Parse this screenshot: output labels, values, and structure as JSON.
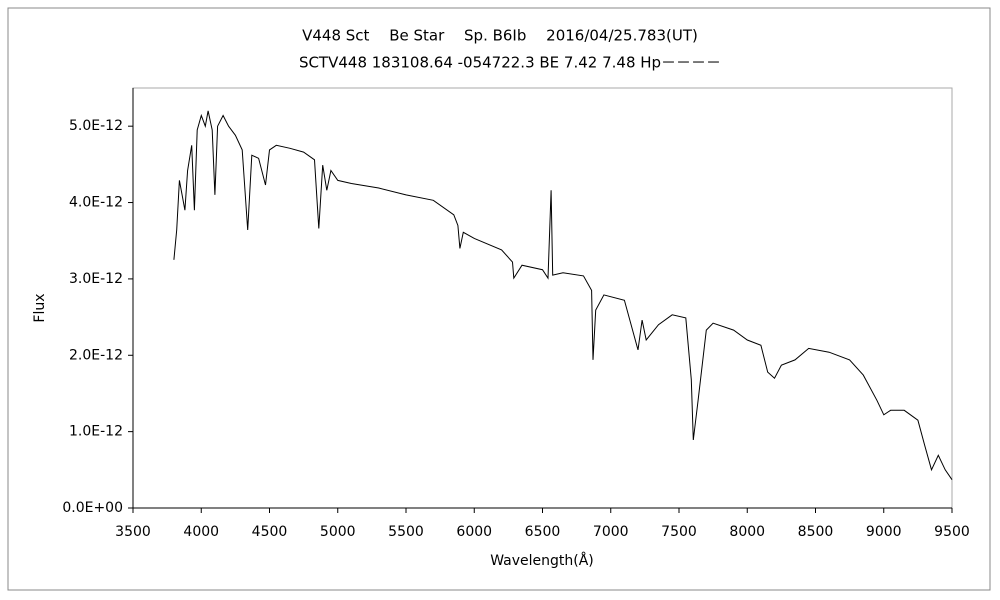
{
  "chart_data": {
    "type": "line",
    "title": "V448 Sct　 Be Star　 Sp. B6Ib　 2016/04/25.783(UT)",
    "subtitle": "SCTV448 183108.64 -054722.3 BE 7.42 7.48 Hp－－－－",
    "x_label": "Wavelength(Å)",
    "y_label": "Flux",
    "xlim": [
      3500,
      9500
    ],
    "xticks": [
      3500,
      4000,
      4500,
      5000,
      5500,
      6000,
      6500,
      7000,
      7500,
      8000,
      8500,
      9000,
      9500
    ],
    "ylim": [
      0,
      5.5e-12
    ],
    "yticks": [
      {
        "value": 0,
        "label": "0.0E+00"
      },
      {
        "value": 1e-12,
        "label": "1.0E-12"
      },
      {
        "value": 2e-12,
        "label": "2.0E-12"
      },
      {
        "value": 3e-12,
        "label": "3.0E-12"
      },
      {
        "value": 4e-12,
        "label": "4.0E-12"
      },
      {
        "value": 5e-12,
        "label": "5.0E-12"
      }
    ],
    "grid": false,
    "series": [
      {
        "color": "#000000",
        "x": [
          3800,
          3820,
          3840,
          3860,
          3880,
          3900,
          3930,
          3950,
          3970,
          4000,
          4030,
          4050,
          4080,
          4100,
          4120,
          4160,
          4200,
          4250,
          4300,
          4340,
          4370,
          4420,
          4471,
          4500,
          4550,
          4650,
          4750,
          4830,
          4861,
          4890,
          4920,
          4950,
          5000,
          5100,
          5300,
          5500,
          5700,
          5850,
          5880,
          5895,
          5920,
          6000,
          6200,
          6280,
          6290,
          6350,
          6500,
          6540,
          6563,
          6575,
          6650,
          6800,
          6860,
          6870,
          6890,
          6950,
          7100,
          7200,
          7230,
          7260,
          7350,
          7450,
          7550,
          7590,
          7605,
          7640,
          7700,
          7750,
          7900,
          8000,
          8100,
          8150,
          8200,
          8250,
          8350,
          8450,
          8600,
          8750,
          8850,
          8950,
          9000,
          9050,
          9150,
          9250,
          9300,
          9350,
          9400,
          9450,
          9500
        ],
        "values": [
          3.25e-12,
          3.64e-12,
          4.29e-12,
          4.1e-12,
          3.9e-12,
          4.42e-12,
          4.75e-12,
          3.9e-12,
          4.95e-12,
          5.14e-12,
          5e-12,
          5.2e-12,
          4.95e-12,
          4.1e-12,
          5e-12,
          5.14e-12,
          5e-12,
          4.88e-12,
          4.69e-12,
          3.64e-12,
          4.62e-12,
          4.58e-12,
          4.23e-12,
          4.69e-12,
          4.75e-12,
          4.71e-12,
          4.66e-12,
          4.56e-12,
          3.66e-12,
          4.49e-12,
          4.16e-12,
          4.42e-12,
          4.29e-12,
          4.25e-12,
          4.19e-12,
          4.1e-12,
          4.03e-12,
          3.84e-12,
          3.7e-12,
          3.4e-12,
          3.61e-12,
          3.53e-12,
          3.38e-12,
          3.22e-12,
          3.01e-12,
          3.18e-12,
          3.12e-12,
          3.01e-12,
          4.16e-12,
          3.05e-12,
          3.08e-12,
          3.04e-12,
          2.85e-12,
          1.94e-12,
          2.59e-12,
          2.79e-12,
          2.72e-12,
          2.07e-12,
          2.46e-12,
          2.2e-12,
          2.4e-12,
          2.53e-12,
          2.49e-12,
          1.68e-12,
          8.9e-13,
          1.41e-12,
          2.33e-12,
          2.42e-12,
          2.33e-12,
          2.2e-12,
          2.13e-12,
          1.78e-12,
          1.7e-12,
          1.87e-12,
          1.94e-12,
          2.09e-12,
          2.04e-12,
          1.94e-12,
          1.74e-12,
          1.41e-12,
          1.22e-12,
          1.28e-12,
          1.28e-12,
          1.15e-12,
          8.2e-13,
          5e-13,
          6.9e-13,
          5e-13,
          3.7e-13
        ]
      }
    ]
  }
}
